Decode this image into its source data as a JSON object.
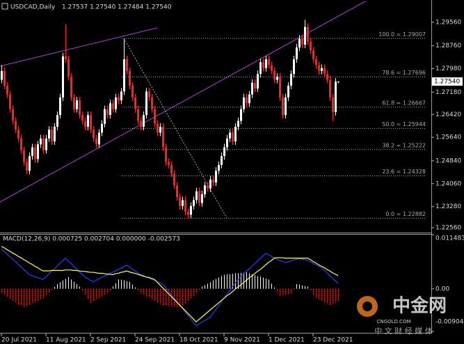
{
  "chart_data": [
    {
      "type": "candlestick",
      "title": "USDCAD,Daily",
      "quote": "1.27537 1.27540 1.27484 1.27540",
      "categories": [
        "20 Jul 2021",
        null,
        null,
        null,
        null,
        null,
        null,
        null,
        null,
        null,
        null,
        null,
        null,
        null,
        null,
        null,
        "11 Aug 2021",
        null,
        null,
        null,
        null,
        null,
        null,
        null,
        null,
        null,
        null,
        null,
        null,
        null,
        null,
        null,
        "2 Sep 2021",
        null,
        null,
        null,
        null,
        null,
        null,
        null,
        null,
        null,
        null,
        null,
        null,
        null,
        null,
        null,
        "24 Sep 2021",
        null,
        null,
        null,
        null,
        null,
        null,
        null,
        null,
        null,
        null,
        null,
        null,
        null,
        null,
        null,
        "18 Oct 2021",
        null,
        null,
        null,
        null,
        null,
        null,
        null,
        null,
        null,
        null,
        null,
        null,
        null,
        null,
        null,
        "9 Nov 2021",
        null,
        null,
        null,
        null,
        null,
        null,
        null,
        null,
        null,
        null,
        null,
        null,
        null,
        null,
        null,
        "1 Dec 2021",
        null,
        null,
        null,
        null,
        null,
        null,
        null,
        null,
        null,
        null,
        null,
        null,
        null,
        null,
        null,
        "23 Dec 2021",
        null,
        null,
        null,
        null,
        null,
        null,
        null,
        null,
        null
      ],
      "open": [
        1.276,
        1.279,
        1.274,
        1.271,
        1.266,
        1.262,
        1.259,
        1.256,
        1.252,
        1.248,
        1.245,
        1.25,
        1.253,
        1.249,
        1.254,
        1.256,
        1.252,
        1.256,
        1.259,
        1.255,
        1.26,
        1.264,
        1.27,
        1.284,
        1.283,
        1.277,
        1.27,
        1.266,
        1.269,
        1.264,
        1.262,
        1.26,
        1.264,
        1.259,
        1.256,
        1.254,
        1.258,
        1.261,
        1.266,
        1.264,
        1.268,
        1.266,
        1.27,
        1.269,
        1.272,
        1.283,
        1.279,
        1.274,
        1.27,
        1.266,
        1.262,
        1.26,
        1.264,
        1.272,
        1.27,
        1.266,
        1.261,
        1.258,
        1.26,
        1.253,
        1.248,
        1.247,
        1.244,
        1.24,
        1.236,
        1.233,
        1.235,
        1.231,
        1.23,
        1.233,
        1.235,
        1.238,
        1.234,
        1.237,
        1.24,
        1.239,
        1.242,
        1.241,
        1.245,
        1.247,
        1.25,
        1.253,
        1.256,
        1.258,
        1.255,
        1.26,
        1.262,
        1.266,
        1.27,
        1.268,
        1.271,
        1.275,
        1.273,
        1.278,
        1.282,
        1.28,
        1.283,
        1.281,
        1.279,
        1.276,
        1.277,
        1.27,
        1.264,
        1.27,
        1.274,
        1.278,
        1.283,
        1.287,
        1.29,
        1.288,
        1.294,
        1.289,
        1.286,
        1.283,
        1.281,
        1.279,
        1.28,
        1.278,
        1.276,
        1.27,
        1.265,
        1.27537
      ],
      "high": [
        1.281,
        1.2802,
        1.2752,
        1.2722,
        1.2672,
        1.2632,
        1.2602,
        1.2572,
        1.2532,
        1.2492,
        1.2512,
        1.2542,
        1.2542,
        1.2552,
        1.2572,
        1.2572,
        1.2572,
        1.2602,
        1.2602,
        1.2612,
        1.2652,
        1.2712,
        1.2852,
        1.2949,
        1.2842,
        1.2782,
        1.2712,
        1.2702,
        1.2702,
        1.2652,
        1.2632,
        1.2652,
        1.2652,
        1.2602,
        1.2572,
        1.2592,
        1.2622,
        1.2672,
        1.2672,
        1.2692,
        1.2692,
        1.2712,
        1.2712,
        1.2732,
        1.29,
        1.2842,
        1.2802,
        1.2752,
        1.2712,
        1.2672,
        1.2632,
        1.2652,
        1.2732,
        1.2732,
        1.2712,
        1.2672,
        1.2622,
        1.2612,
        1.2612,
        1.2542,
        1.2492,
        1.2482,
        1.2452,
        1.2412,
        1.2372,
        1.2362,
        1.2362,
        1.2322,
        1.2342,
        1.2362,
        1.2392,
        1.2392,
        1.2382,
        1.2412,
        1.2412,
        1.2432,
        1.2432,
        1.2462,
        1.2482,
        1.2512,
        1.2542,
        1.2572,
        1.2592,
        1.2592,
        1.2612,
        1.2632,
        1.2672,
        1.2712,
        1.2712,
        1.2722,
        1.2762,
        1.2762,
        1.2792,
        1.2832,
        1.2832,
        1.2842,
        1.2842,
        1.2822,
        1.2802,
        1.2782,
        1.2782,
        1.2712,
        1.2712,
        1.2752,
        1.2792,
        1.2842,
        1.2882,
        1.2912,
        1.2912,
        1.2964,
        1.2952,
        1.2902,
        1.2872,
        1.2842,
        1.2822,
        1.2812,
        1.2812,
        1.2792,
        1.2772,
        1.2712,
        1.2766,
        1.2754
      ],
      "low": [
        1.2748,
        1.2728,
        1.2698,
        1.2648,
        1.2608,
        1.2578,
        1.2548,
        1.2508,
        1.2468,
        1.2438,
        1.2438,
        1.2488,
        1.2478,
        1.2478,
        1.2528,
        1.2508,
        1.2508,
        1.2548,
        1.2538,
        1.2538,
        1.2588,
        1.2628,
        1.2688,
        1.2818,
        1.2758,
        1.2688,
        1.2648,
        1.2648,
        1.2628,
        1.2608,
        1.2588,
        1.2588,
        1.2578,
        1.2548,
        1.2528,
        1.2528,
        1.2568,
        1.2598,
        1.2628,
        1.2628,
        1.2648,
        1.2648,
        1.2678,
        1.2678,
        1.2708,
        1.2778,
        1.2728,
        1.2688,
        1.2648,
        1.2608,
        1.2588,
        1.2588,
        1.2628,
        1.2688,
        1.2648,
        1.2598,
        1.2568,
        1.2568,
        1.2518,
        1.2468,
        1.2458,
        1.2428,
        1.2388,
        1.2348,
        1.2318,
        1.2318,
        1.2298,
        1.2288,
        1.2288,
        1.2318,
        1.2338,
        1.2328,
        1.2328,
        1.2358,
        1.2378,
        1.2378,
        1.2398,
        1.2398,
        1.2438,
        1.2458,
        1.2488,
        1.2518,
        1.2548,
        1.2538,
        1.2538,
        1.2588,
        1.2608,
        1.2648,
        1.2668,
        1.2668,
        1.2698,
        1.2718,
        1.2718,
        1.2768,
        1.2788,
        1.2788,
        1.2798,
        1.2778,
        1.2748,
        1.2748,
        1.2688,
        1.2628,
        1.2628,
        1.2688,
        1.2728,
        1.2768,
        1.2818,
        1.2858,
        1.2868,
        1.2868,
        1.2878,
        1.2848,
        1.2818,
        1.2798,
        1.2778,
        1.2778,
        1.2768,
        1.2748,
        1.2688,
        1.262,
        1.2638,
        1.27484
      ],
      "close": [
        1.279,
        1.274,
        1.271,
        1.266,
        1.262,
        1.259,
        1.256,
        1.252,
        1.248,
        1.245,
        1.25,
        1.253,
        1.249,
        1.254,
        1.256,
        1.252,
        1.256,
        1.259,
        1.255,
        1.26,
        1.264,
        1.27,
        1.284,
        1.283,
        1.277,
        1.27,
        1.266,
        1.269,
        1.264,
        1.262,
        1.26,
        1.264,
        1.259,
        1.256,
        1.254,
        1.258,
        1.261,
        1.266,
        1.264,
        1.268,
        1.266,
        1.27,
        1.269,
        1.272,
        1.283,
        1.279,
        1.274,
        1.27,
        1.266,
        1.262,
        1.26,
        1.264,
        1.272,
        1.27,
        1.266,
        1.261,
        1.258,
        1.26,
        1.253,
        1.248,
        1.247,
        1.244,
        1.24,
        1.236,
        1.233,
        1.235,
        1.231,
        1.23,
        1.233,
        1.235,
        1.238,
        1.234,
        1.237,
        1.24,
        1.239,
        1.242,
        1.241,
        1.245,
        1.247,
        1.25,
        1.253,
        1.256,
        1.258,
        1.255,
        1.26,
        1.262,
        1.266,
        1.27,
        1.268,
        1.271,
        1.275,
        1.273,
        1.278,
        1.282,
        1.28,
        1.283,
        1.281,
        1.279,
        1.276,
        1.277,
        1.27,
        1.264,
        1.27,
        1.274,
        1.278,
        1.283,
        1.287,
        1.29,
        1.288,
        1.294,
        1.289,
        1.286,
        1.283,
        1.281,
        1.279,
        1.28,
        1.278,
        1.276,
        1.27,
        1.265,
        1.2754,
        1.2754
      ],
      "up_color": "#ffffff",
      "down_color": "#ff2020",
      "ylim": [
        1.22417,
        1.30319
      ],
      "yticks": [
        {
          "value": 1.2956,
          "label": "1.29560"
        },
        {
          "value": 1.2876,
          "label": "1.28760"
        },
        {
          "value": 1.2798,
          "label": "1.27980"
        },
        {
          "value": 1.2718,
          "label": "1.27180"
        },
        {
          "value": 1.2642,
          "label": "1.26420"
        },
        {
          "value": 1.2564,
          "label": "1.25640"
        },
        {
          "value": 1.2484,
          "label": "1.24840"
        },
        {
          "value": 1.2406,
          "label": "1.24060"
        },
        {
          "value": 1.2328,
          "label": "1.23280"
        },
        {
          "value": 1.2256,
          "label": "1.22560"
        }
      ],
      "fib_color": "#a8a8a8",
      "fib_levels": [
        {
          "text": "100.0 = 1.29007",
          "value": 1.29007
        },
        {
          "text": "78.6 = 1.27696",
          "value": 1.27696
        },
        {
          "text": "61.8 = 1.26667",
          "value": 1.26667
        },
        {
          "text": "50.0 = 1.25944",
          "value": 1.25944
        },
        {
          "text": "38.2 = 1.25222",
          "value": 1.25222
        },
        {
          "text": "23.6 = 1.24328",
          "value": 1.24328
        },
        {
          "text": "0.0 = 1.22882",
          "value": 1.22882
        }
      ],
      "current_price": {
        "value": 1.2754,
        "label": "1.27540"
      }
    },
    {
      "type": "macd",
      "title": "MACD(12,26,9) 0.000725 0.002704 0.000000 -0.002573",
      "ylim": [
        -0.009043,
        0.011483
      ],
      "yticks": [
        0.011483,
        {
          "value": 0,
          "label": "0.00"
        },
        -0.009043
      ],
      "series": [
        {
          "style": "histogram",
          "up_color": "#ffffff",
          "down_color": "#ff2020",
          "values": [
            -0.001,
            -0.0014,
            -0.0018,
            -0.0021,
            -0.0025,
            -0.0029,
            -0.0033,
            -0.0036,
            -0.004,
            -0.0037,
            -0.0034,
            -0.0031,
            -0.0029,
            -0.0026,
            -0.0023,
            -0.002,
            -0.0014,
            -0.0008,
            -0.0002,
            0.0004,
            0.001,
            0.0014,
            0.0018,
            0.0021,
            0.0025,
            0.002,
            0.0015,
            0.001,
            0.0005,
            -0.0004,
            -0.0013,
            -0.0021,
            -0.003,
            -0.0027,
            -0.0023,
            -0.002,
            -0.0017,
            -0.0013,
            -0.001,
            -0.0003,
            0.0005,
            0.0012,
            0.002,
            0.0019,
            0.0018,
            0.0016,
            0.0015,
            0.0009,
            0.0003,
            -0.0004,
            -0.001,
            -0.0013,
            -0.0016,
            -0.0019,
            -0.0023,
            -0.0026,
            -0.0029,
            -0.0032,
            -0.0035,
            -0.0036,
            -0.0037,
            -0.0038,
            -0.0038,
            -0.0039,
            -0.004,
            -0.0035,
            -0.003,
            -0.0025,
            -0.002,
            -0.0015,
            -0.001,
            -0.0002,
            0.0005,
            0.0008,
            0.0011,
            0.0014,
            0.0018,
            0.0021,
            0.0024,
            0.0027,
            0.003,
            0.0031,
            0.0031,
            0.0032,
            0.0033,
            0.0033,
            0.0034,
            0.0034,
            0.0035,
            0.0033,
            0.0031,
            0.0029,
            0.0027,
            0.0026,
            0.0024,
            0.0022,
            0.002,
            0.0011,
            0.0003,
            -0.0006,
            -0.0015,
            -0.0014,
            -0.0013,
            -0.0011,
            -0.001,
            0.0001,
            0.001,
            0.0009,
            0.0007,
            0.0006,
            0.0005,
            -0.0003,
            -0.0012,
            -0.002,
            -0.0023,
            -0.0026,
            -0.0029,
            -0.0032,
            -0.0035,
            -0.0032,
            -0.0029,
            -0.0026
          ]
        },
        {
          "style": "line",
          "color": "#2a3cff",
          "values": [
            0.0085,
            0.0079,
            0.0074,
            0.0068,
            0.0063,
            0.0058,
            0.0052,
            0.0047,
            0.0041,
            0.0036,
            0.003,
            0.0028,
            0.0026,
            0.0024,
            0.0022,
            0.002,
            0.0026,
            0.0031,
            0.0037,
            0.0042,
            0.0048,
            0.0054,
            0.0059,
            0.0065,
            0.0059,
            0.0054,
            0.0048,
            0.0042,
            0.0036,
            0.0031,
            0.0025,
            0.0022,
            0.0018,
            0.0015,
            0.0018,
            0.0021,
            0.0024,
            0.0027,
            0.003,
            0.0033,
            0.0035,
            0.0038,
            0.0041,
            0.0044,
            0.0047,
            0.005,
            0.0046,
            0.0042,
            0.0038,
            0.0034,
            0.003,
            0.0028,
            0.0025,
            0.0023,
            0.002,
            0.0018,
            0.0015,
            0.0013,
            0.001,
            0.0003,
            -0.0005,
            -0.0012,
            -0.0019,
            -0.0027,
            -0.0034,
            -0.0041,
            -0.0049,
            -0.0056,
            -0.0063,
            -0.0071,
            -0.0078,
            -0.0074,
            -0.0071,
            -0.0067,
            -0.0064,
            -0.006,
            -0.0052,
            -0.0044,
            -0.0036,
            -0.0028,
            -0.002,
            -0.0012,
            -0.0004,
            0.0004,
            0.0012,
            0.002,
            0.0026,
            0.0031,
            0.0037,
            0.0042,
            0.0048,
            0.0053,
            0.0059,
            0.0064,
            0.007,
            0.0075,
            0.0072,
            0.0069,
            0.0066,
            0.0063,
            0.006,
            0.0058,
            0.0056,
            0.0057,
            0.0059,
            0.0061,
            0.0063,
            0.0064,
            0.0063,
            0.0062,
            0.006,
            0.0057,
            0.0054,
            0.0051,
            0.0048,
            0.0045,
            0.004,
            0.0034,
            0.0028,
            0.0022,
            0.0017,
            0.0012
          ]
        },
        {
          "style": "line",
          "color": "#ffff40",
          "values": [
            0.009,
            0.0087,
            0.0083,
            0.008,
            0.0076,
            0.0073,
            0.0069,
            0.0066,
            0.0062,
            0.0059,
            0.0055,
            0.0052,
            0.0048,
            0.0045,
            0.0041,
            0.0038,
            0.0038,
            0.0038,
            0.0039,
            0.0039,
            0.0039,
            0.0039,
            0.0039,
            0.004,
            0.004,
            0.004,
            0.0039,
            0.0039,
            0.0038,
            0.0037,
            0.0037,
            0.0036,
            0.0035,
            0.0035,
            0.0034,
            0.0033,
            0.0033,
            0.0032,
            0.0031,
            0.0031,
            0.003,
            0.0032,
            0.0033,
            0.0035,
            0.0036,
            0.0038,
            0.0036,
            0.0034,
            0.0033,
            0.0031,
            0.0029,
            0.0027,
            0.0025,
            0.0024,
            0.0022,
            0.002,
            0.0014,
            0.0008,
            0.0002,
            -0.0004,
            -0.001,
            -0.0016,
            -0.0022,
            -0.0028,
            -0.0034,
            -0.004,
            -0.0046,
            -0.0052,
            -0.0058,
            -0.0064,
            -0.007,
            -0.0065,
            -0.006,
            -0.0055,
            -0.005,
            -0.0045,
            -0.004,
            -0.0035,
            -0.003,
            -0.0025,
            -0.002,
            -0.0015,
            -0.0011,
            -0.0006,
            -0.0001,
            0.0004,
            0.0008,
            0.0013,
            0.0018,
            0.0023,
            0.0027,
            0.0032,
            0.0037,
            0.0041,
            0.0046,
            0.0051,
            0.0056,
            0.006,
            0.0065,
            0.0066,
            0.0066,
            0.0066,
            0.0065,
            0.0065,
            0.0065,
            0.0065,
            0.0065,
            0.0065,
            0.0065,
            0.0065,
            0.0065,
            0.0062,
            0.0058,
            0.0055,
            0.0051,
            0.0048,
            0.0045,
            0.0041,
            0.0038,
            0.0034,
            0.0031,
            0.0028
          ]
        }
      ]
    }
  ],
  "watermark": {
    "brand": "中金网",
    "site": "CNGOLD.COM",
    "tagline": "中 文 财 经 媒 体"
  }
}
